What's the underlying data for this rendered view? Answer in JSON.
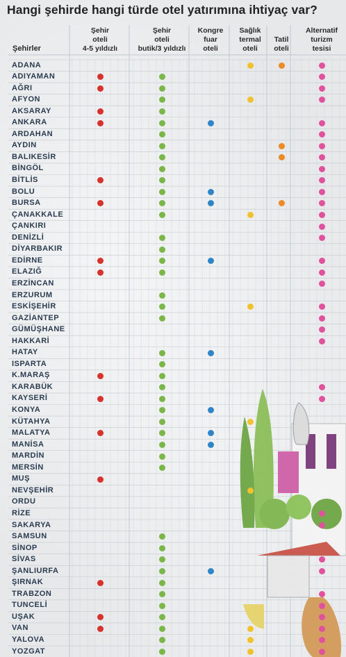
{
  "title": "Hangi şehirde hangi türde otel yatırımına ihtiyaç var?",
  "colors": {
    "sehir_45": "#d8322c",
    "butik_3": "#7ab648",
    "kongre": "#2e86c8",
    "saglik": "#f2c12e",
    "tatil": "#ee8a25",
    "alternatif": "#e0529c"
  },
  "chart_data": {
    "type": "table",
    "row_header": "Şehirler",
    "columns": [
      {
        "key": "sehir_45",
        "label": "Şehir\noteli\n4-5 yıldızlı"
      },
      {
        "key": "butik_3",
        "label": "Şehir\noteli\nbutik/3 yıldızlı"
      },
      {
        "key": "kongre",
        "label": "Kongre\nfuar\noteli"
      },
      {
        "key": "saglik",
        "label": "Sağlık\ntermal\noteli"
      },
      {
        "key": "tatil",
        "label": "Tatil\noteli"
      },
      {
        "key": "alternatif",
        "label": "Alternatif\nturizm\ntesisi"
      }
    ],
    "rows": [
      {
        "city": "ADANA",
        "marks": [
          "saglik",
          "tatil",
          "alternatif"
        ]
      },
      {
        "city": "ADIYAMAN",
        "marks": [
          "sehir_45",
          "butik_3",
          "alternatif"
        ]
      },
      {
        "city": "AĞRI",
        "marks": [
          "sehir_45",
          "butik_3",
          "alternatif"
        ]
      },
      {
        "city": "AFYON",
        "marks": [
          "butik_3",
          "saglik",
          "alternatif"
        ]
      },
      {
        "city": "AKSARAY",
        "marks": [
          "sehir_45",
          "butik_3"
        ]
      },
      {
        "city": "ANKARA",
        "marks": [
          "sehir_45",
          "butik_3",
          "kongre",
          "alternatif"
        ]
      },
      {
        "city": "ARDAHAN",
        "marks": [
          "butik_3",
          "alternatif"
        ]
      },
      {
        "city": "AYDIN",
        "marks": [
          "butik_3",
          "tatil",
          "alternatif"
        ]
      },
      {
        "city": "BALIKESİR",
        "marks": [
          "butik_3",
          "tatil",
          "alternatif"
        ]
      },
      {
        "city": "BİNGÖL",
        "marks": [
          "butik_3",
          "alternatif"
        ]
      },
      {
        "city": "BİTLİS",
        "marks": [
          "sehir_45",
          "butik_3",
          "alternatif"
        ]
      },
      {
        "city": "BOLU",
        "marks": [
          "butik_3",
          "kongre",
          "alternatif"
        ]
      },
      {
        "city": "BURSA",
        "marks": [
          "sehir_45",
          "butik_3",
          "kongre",
          "tatil",
          "alternatif"
        ]
      },
      {
        "city": "ÇANAKKALE",
        "marks": [
          "butik_3",
          "saglik",
          "alternatif"
        ]
      },
      {
        "city": "ÇANKIRI",
        "marks": [
          "alternatif"
        ]
      },
      {
        "city": "DENİZLİ",
        "marks": [
          "butik_3",
          "alternatif"
        ]
      },
      {
        "city": "DİYARBAKIR",
        "marks": [
          "butik_3"
        ]
      },
      {
        "city": "EDİRNE",
        "marks": [
          "sehir_45",
          "butik_3",
          "kongre",
          "alternatif"
        ]
      },
      {
        "city": "ELAZIĞ",
        "marks": [
          "sehir_45",
          "butik_3",
          "alternatif"
        ]
      },
      {
        "city": "ERZİNCAN",
        "marks": [
          "alternatif"
        ]
      },
      {
        "city": "ERZURUM",
        "marks": [
          "butik_3"
        ]
      },
      {
        "city": "ESKİŞEHİR",
        "marks": [
          "butik_3",
          "saglik",
          "alternatif"
        ]
      },
      {
        "city": "GAZİANTEP",
        "marks": [
          "butik_3",
          "alternatif"
        ]
      },
      {
        "city": "GÜMÜŞHANE",
        "marks": [
          "alternatif"
        ]
      },
      {
        "city": "HAKKARİ",
        "marks": [
          "alternatif"
        ]
      },
      {
        "city": "HATAY",
        "marks": [
          "butik_3",
          "kongre"
        ]
      },
      {
        "city": "ISPARTA",
        "marks": [
          "butik_3"
        ]
      },
      {
        "city": "K.MARAŞ",
        "marks": [
          "sehir_45",
          "butik_3"
        ]
      },
      {
        "city": "KARABÜK",
        "marks": [
          "butik_3",
          "alternatif"
        ]
      },
      {
        "city": "KAYSERİ",
        "marks": [
          "sehir_45",
          "butik_3",
          "alternatif"
        ]
      },
      {
        "city": "KONYA",
        "marks": [
          "butik_3",
          "kongre"
        ]
      },
      {
        "city": "KÜTAHYA",
        "marks": [
          "butik_3",
          "saglik"
        ]
      },
      {
        "city": "MALATYA",
        "marks": [
          "sehir_45",
          "butik_3",
          "kongre"
        ]
      },
      {
        "city": "MANİSA",
        "marks": [
          "butik_3",
          "kongre"
        ]
      },
      {
        "city": "MARDİN",
        "marks": [
          "butik_3"
        ]
      },
      {
        "city": "MERSİN",
        "marks": [
          "butik_3"
        ]
      },
      {
        "city": "MUŞ",
        "marks": [
          "sehir_45"
        ]
      },
      {
        "city": "NEVŞEHİR",
        "marks": [
          "saglik"
        ]
      },
      {
        "city": "ORDU",
        "marks": []
      },
      {
        "city": "RİZE",
        "marks": [
          "alternatif"
        ]
      },
      {
        "city": "SAKARYA",
        "marks": [
          "alternatif"
        ]
      },
      {
        "city": "SAMSUN",
        "marks": [
          "butik_3"
        ]
      },
      {
        "city": "SİNOP",
        "marks": [
          "butik_3"
        ]
      },
      {
        "city": "SİVAS",
        "marks": [
          "butik_3",
          "alternatif"
        ]
      },
      {
        "city": "ŞANLIURFA",
        "marks": [
          "butik_3",
          "kongre",
          "alternatif"
        ]
      },
      {
        "city": "ŞIRNAK",
        "marks": [
          "sehir_45",
          "butik_3"
        ]
      },
      {
        "city": "TRABZON",
        "marks": [
          "butik_3",
          "alternatif"
        ]
      },
      {
        "city": "TUNCELİ",
        "marks": [
          "butik_3",
          "alternatif"
        ]
      },
      {
        "city": "UŞAK",
        "marks": [
          "sehir_45",
          "butik_3",
          "alternatif"
        ]
      },
      {
        "city": "VAN",
        "marks": [
          "sehir_45",
          "butik_3",
          "saglik",
          "alternatif"
        ]
      },
      {
        "city": "YALOVA",
        "marks": [
          "butik_3",
          "saglik",
          "alternatif"
        ]
      },
      {
        "city": "YOZGAT",
        "marks": [
          "butik_3",
          "saglik",
          "alternatif"
        ]
      }
    ]
  }
}
